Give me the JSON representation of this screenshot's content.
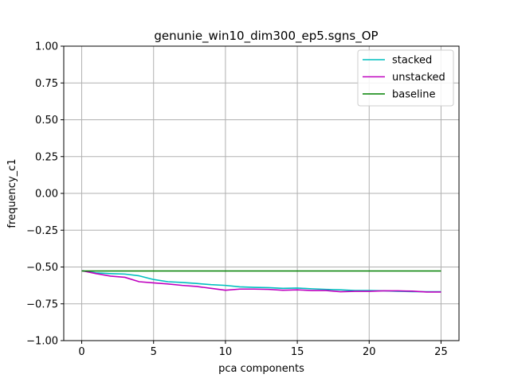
{
  "chart_data": {
    "type": "line",
    "title": "genunie_win10_dim300_ep5.sgns_OP",
    "xlabel": "pca components",
    "ylabel": "frequency_c1",
    "xlim": [
      -1.25,
      26.25
    ],
    "ylim": [
      -1.0,
      1.0
    ],
    "xticks": [
      0,
      5,
      10,
      15,
      20,
      25
    ],
    "yticks": [
      -1.0,
      -0.75,
      -0.5,
      -0.25,
      0.0,
      0.25,
      0.5,
      0.75,
      1.0
    ],
    "xtick_labels": [
      "0",
      "5",
      "10",
      "15",
      "20",
      "25"
    ],
    "ytick_labels": [
      "−1.00",
      "−0.75",
      "−0.50",
      "−0.25",
      "0.00",
      "0.25",
      "0.50",
      "0.75",
      "1.00"
    ],
    "grid": true,
    "legend_position": "top-right",
    "x": [
      0,
      1,
      2,
      3,
      4,
      5,
      6,
      7,
      8,
      9,
      10,
      11,
      12,
      13,
      14,
      15,
      16,
      17,
      18,
      19,
      20,
      21,
      22,
      23,
      24,
      25
    ],
    "series": [
      {
        "name": "stacked",
        "color": "#00bfbf",
        "values": [
          -0.525,
          -0.54,
          -0.545,
          -0.548,
          -0.56,
          -0.585,
          -0.6,
          -0.605,
          -0.612,
          -0.62,
          -0.625,
          -0.635,
          -0.638,
          -0.64,
          -0.645,
          -0.643,
          -0.648,
          -0.652,
          -0.655,
          -0.66,
          -0.66,
          -0.662,
          -0.665,
          -0.667,
          -0.668,
          -0.668
        ]
      },
      {
        "name": "unstacked",
        "color": "#bf00bf",
        "values": [
          -0.525,
          -0.545,
          -0.562,
          -0.57,
          -0.6,
          -0.608,
          -0.615,
          -0.625,
          -0.632,
          -0.645,
          -0.658,
          -0.65,
          -0.65,
          -0.652,
          -0.658,
          -0.655,
          -0.66,
          -0.66,
          -0.668,
          -0.665,
          -0.665,
          -0.662,
          -0.662,
          -0.664,
          -0.67,
          -0.67
        ]
      },
      {
        "name": "baseline",
        "color": "#008000",
        "values": [
          -0.527,
          -0.527,
          -0.527,
          -0.527,
          -0.527,
          -0.527,
          -0.527,
          -0.527,
          -0.527,
          -0.527,
          -0.527,
          -0.527,
          -0.527,
          -0.527,
          -0.527,
          -0.527,
          -0.527,
          -0.527,
          -0.527,
          -0.527,
          -0.527,
          -0.527,
          -0.527,
          -0.527,
          -0.527,
          -0.527
        ]
      }
    ]
  }
}
